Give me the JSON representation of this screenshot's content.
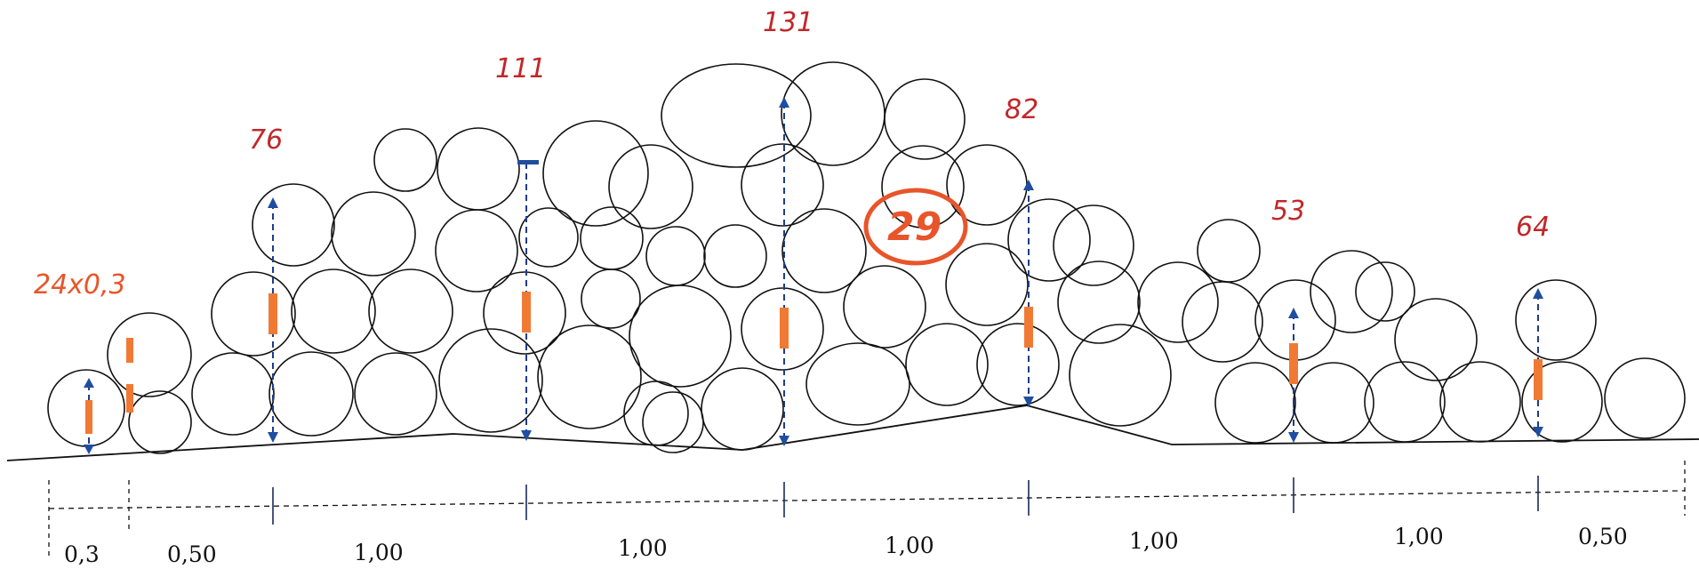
{
  "height_labels": {
    "first": "24x0,3",
    "second": "76",
    "third": "111",
    "fourth": "131",
    "fifth": "82",
    "sixth": "53",
    "seventh": "64"
  },
  "circled_label": "29",
  "dimension_labels": [
    "0,3",
    "0,50",
    "1,00",
    "1,00",
    "1,00",
    "1,00",
    "1,00",
    "0,50"
  ],
  "colors": {
    "height_label": "#c0282a",
    "highlight_orange": "#e8552a",
    "marker_orange": "#f07a34",
    "arrow_blue": "#1f4ea0"
  }
}
